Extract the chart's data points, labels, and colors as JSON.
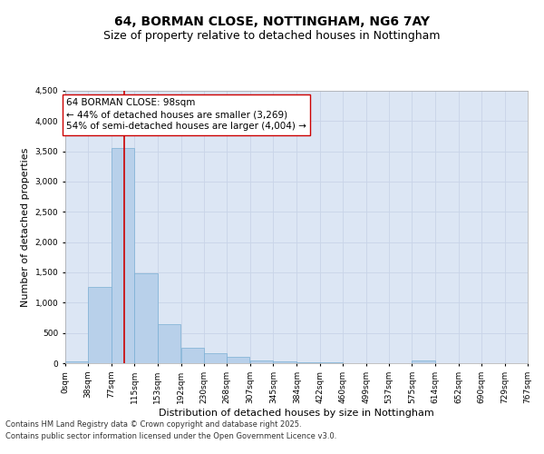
{
  "title_line1": "64, BORMAN CLOSE, NOTTINGHAM, NG6 7AY",
  "title_line2": "Size of property relative to detached houses in Nottingham",
  "xlabel": "Distribution of detached houses by size in Nottingham",
  "ylabel": "Number of detached properties",
  "annotation_line1": "64 BORMAN CLOSE: 98sqm",
  "annotation_line2": "← 44% of detached houses are smaller (3,269)",
  "annotation_line3": "54% of semi-detached houses are larger (4,004) →",
  "property_size": 98,
  "bin_width": 38,
  "bin_starts": [
    0,
    38,
    77,
    115,
    153,
    192,
    230,
    268,
    307,
    345,
    384,
    422,
    460,
    499,
    537,
    575,
    614,
    652,
    690,
    729
  ],
  "bar_heights": [
    25,
    1260,
    3560,
    1490,
    650,
    260,
    170,
    100,
    50,
    30,
    15,
    10,
    5,
    0,
    0,
    40,
    0,
    0,
    0,
    0
  ],
  "bar_color": "#b8d0ea",
  "bar_edgecolor": "#7aafd4",
  "vline_color": "#cc0000",
  "vline_x": 98,
  "ylim": [
    0,
    4500
  ],
  "yticks": [
    0,
    500,
    1000,
    1500,
    2000,
    2500,
    3000,
    3500,
    4000,
    4500
  ],
  "grid_color": "#c8d4e8",
  "axes_background": "#dce6f4",
  "fig_background": "#ffffff",
  "footnote1": "Contains HM Land Registry data © Crown copyright and database right 2025.",
  "footnote2": "Contains public sector information licensed under the Open Government Licence v3.0.",
  "title_fontsize": 10,
  "subtitle_fontsize": 9,
  "tick_label_fontsize": 6.5,
  "axis_label_fontsize": 8,
  "annotation_fontsize": 7.5,
  "footnote_fontsize": 6
}
